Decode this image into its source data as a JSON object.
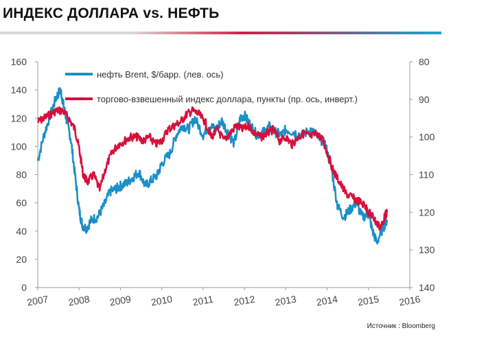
{
  "title": "ИНДЕКС ДОЛЛАРА vs. НЕФТЬ",
  "source": "Источник : Bloomberg",
  "colors": {
    "oil": "#1a8fc8",
    "dollar": "#d6103c",
    "axis": "#999999",
    "accent_red": "#cc2244",
    "accent_blue": "#1fa3c8"
  },
  "chart_data": {
    "type": "line",
    "title": "ИНДЕКС ДОЛЛАРА vs. НЕФТЬ",
    "x_ticks": [
      "2007",
      "2008",
      "2009",
      "2010",
      "2011",
      "2012",
      "2013",
      "2014",
      "2015",
      "2016"
    ],
    "xlim": [
      2007,
      2016
    ],
    "y_left": {
      "ticks": [
        "0",
        "20",
        "40",
        "60",
        "80",
        "100",
        "120",
        "140",
        "160"
      ],
      "lim": [
        0,
        160
      ]
    },
    "y_right": {
      "ticks": [
        "80",
        "90",
        "100",
        "110",
        "120",
        "130",
        "140"
      ],
      "lim": [
        80,
        140
      ],
      "inverted": true
    },
    "legend": {
      "placement": "top-left"
    },
    "grid": false,
    "series": [
      {
        "name": "нефть Brent, $/барр. (лев. ось)",
        "axis": "left",
        "color": "#1a8fc8",
        "x": [
          2007.0,
          2007.15,
          2007.3,
          2007.45,
          2007.55,
          2007.62,
          2007.7,
          2007.8,
          2007.9,
          2008.0,
          2008.08,
          2008.18,
          2008.3,
          2008.45,
          2008.6,
          2008.75,
          2008.9,
          2009.0,
          2009.15,
          2009.3,
          2009.45,
          2009.6,
          2009.75,
          2009.9,
          2010.0,
          2010.2,
          2010.35,
          2010.5,
          2010.65,
          2010.8,
          2011.0,
          2011.15,
          2011.3,
          2011.45,
          2011.6,
          2011.75,
          2011.9,
          2012.0,
          2012.15,
          2012.3,
          2012.45,
          2012.6,
          2012.75,
          2012.9,
          2013.0,
          2013.2,
          2013.4,
          2013.6,
          2013.8,
          2013.95,
          2014.1,
          2014.25,
          2014.4,
          2014.55,
          2014.7,
          2014.85,
          2015.0,
          2015.1,
          2015.2,
          2015.35,
          2015.45
        ],
        "values": [
          90,
          108,
          122,
          135,
          140,
          130,
          118,
          105,
          80,
          55,
          44,
          42,
          48,
          50,
          58,
          68,
          70,
          72,
          74,
          78,
          82,
          72,
          76,
          80,
          88,
          95,
          108,
          115,
          112,
          120,
          108,
          115,
          112,
          118,
          110,
          102,
          120,
          122,
          115,
          108,
          110,
          114,
          110,
          108,
          112,
          110,
          108,
          112,
          106,
          102,
          85,
          58,
          50,
          55,
          60,
          50,
          52,
          40,
          32,
          42,
          48
        ]
      },
      {
        "name": "торгово-взвешенный индекс доллара, пункты (пр. ось, инверт.)",
        "axis": "right",
        "color": "#d6103c",
        "x": [
          2007.0,
          2007.15,
          2007.3,
          2007.45,
          2007.6,
          2007.75,
          2007.9,
          2008.0,
          2008.1,
          2008.2,
          2008.35,
          2008.5,
          2008.65,
          2008.8,
          2008.95,
          2009.1,
          2009.25,
          2009.4,
          2009.55,
          2009.7,
          2009.85,
          2010.0,
          2010.15,
          2010.3,
          2010.45,
          2010.6,
          2010.75,
          2010.9,
          2011.05,
          2011.2,
          2011.35,
          2011.5,
          2011.65,
          2011.8,
          2011.95,
          2012.1,
          2012.25,
          2012.4,
          2012.55,
          2012.7,
          2012.85,
          2013.0,
          2013.15,
          2013.3,
          2013.45,
          2013.6,
          2013.75,
          2013.9,
          2014.0,
          2014.15,
          2014.3,
          2014.45,
          2014.6,
          2014.75,
          2014.9,
          2015.0,
          2015.1,
          2015.2,
          2015.3,
          2015.4,
          2015.45
        ],
        "values": [
          96,
          95,
          94,
          93,
          93,
          95,
          98,
          103,
          110,
          112,
          110,
          114,
          108,
          104,
          102,
          101,
          100,
          100,
          101,
          100,
          102,
          101,
          98,
          97,
          96,
          94,
          93,
          94,
          96,
          100,
          98,
          101,
          99,
          97,
          98,
          97,
          99,
          100,
          99,
          98,
          101,
          100,
          102,
          100,
          99,
          100,
          99,
          101,
          104,
          109,
          112,
          115,
          116,
          117,
          118,
          120,
          121,
          123,
          124,
          121,
          120
        ]
      }
    ]
  }
}
